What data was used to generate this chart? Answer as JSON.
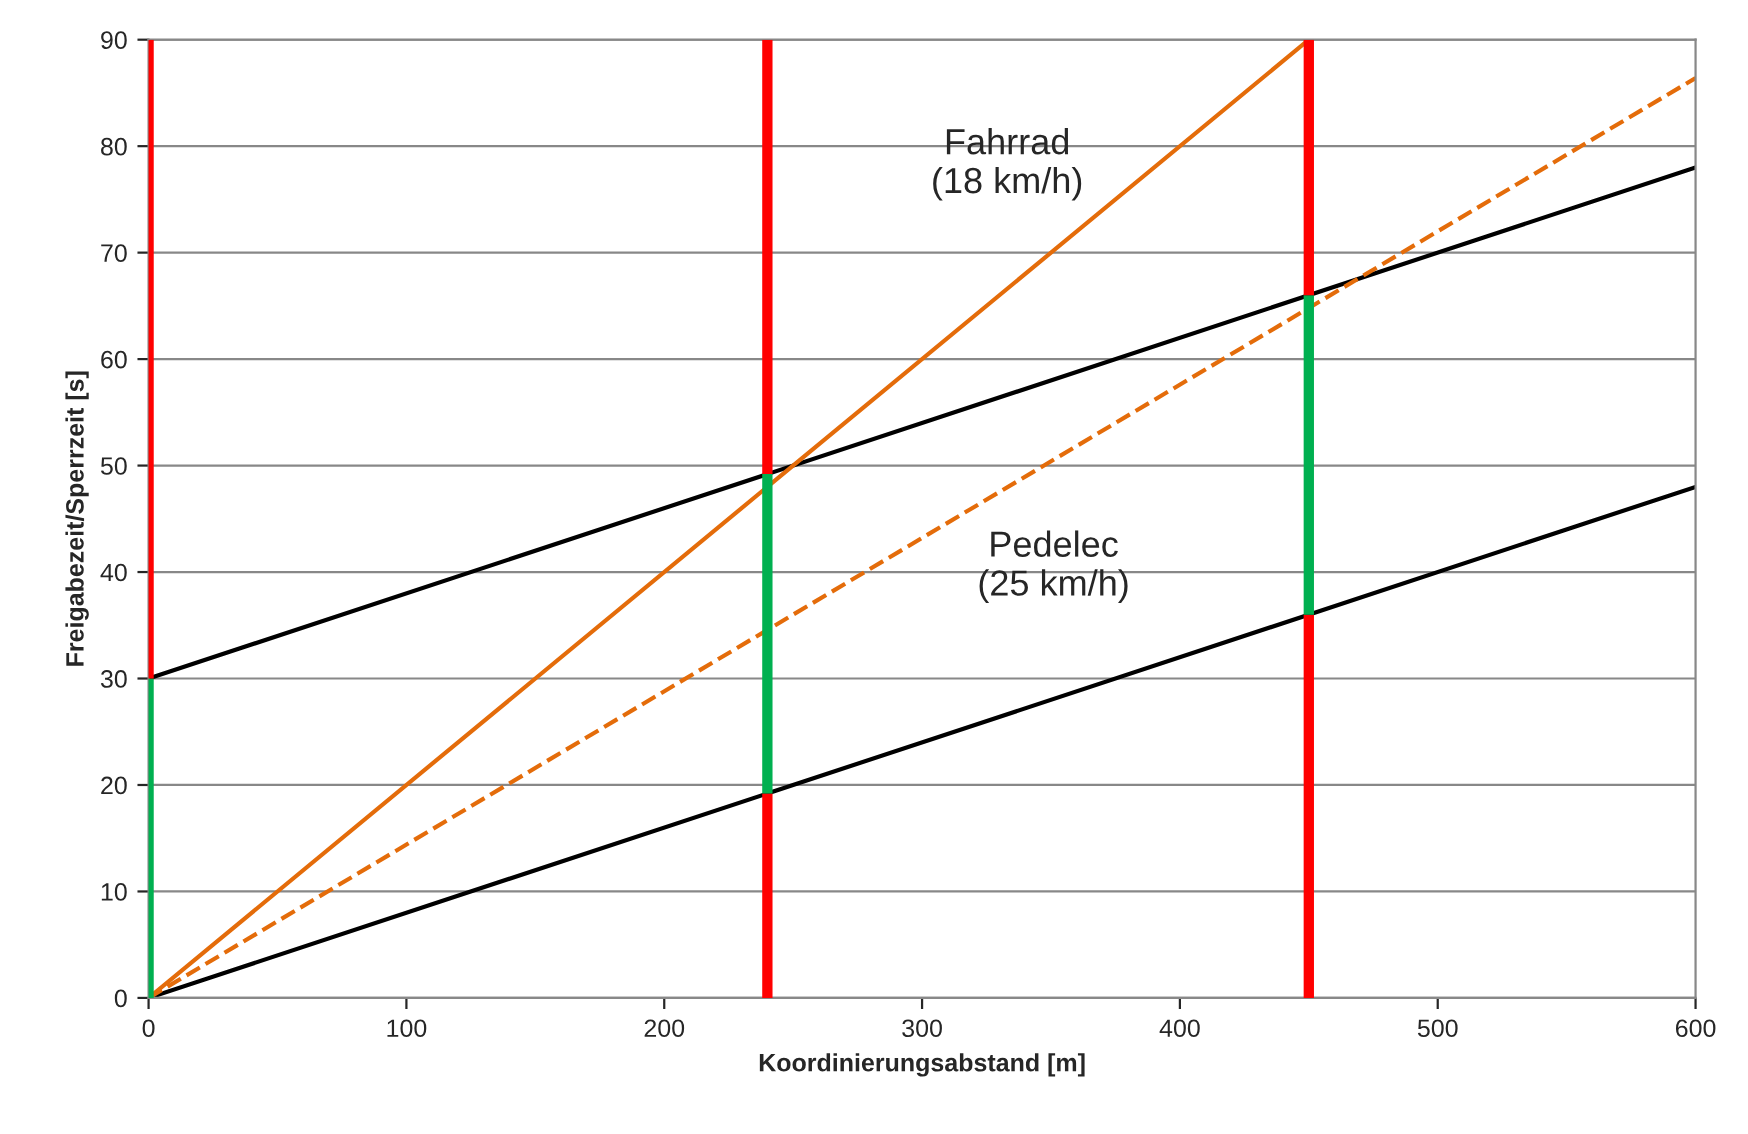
{
  "chart_data": {
    "type": "line",
    "xlabel": "Koordinierungsabstand [m]",
    "ylabel": "Freigabezeit/Sperrzeit [s]",
    "xlim": [
      0,
      600
    ],
    "ylim": [
      0,
      90
    ],
    "xticks": [
      0,
      100,
      200,
      300,
      400,
      500,
      600
    ],
    "yticks": [
      0,
      10,
      20,
      30,
      40,
      50,
      60,
      70,
      80,
      90
    ],
    "grid": "y",
    "legend": false,
    "stacked": true,
    "series": [
      {
        "color": "#000000",
        "x": [
          0,
          600
        ],
        "values": [
          30,
          78
        ],
        "line_style": "solid"
      },
      {
        "color": "#000000",
        "x": [
          0,
          600
        ],
        "values": [
          0,
          48
        ],
        "line_style": "solid"
      },
      {
        "color": "#e46c0a",
        "x": [
          0,
          450
        ],
        "values": [
          0,
          90
        ],
        "line_style": "solid"
      },
      {
        "color": "#e46c0a",
        "x": [
          0,
          600
        ],
        "values": [
          0,
          86.4
        ],
        "line_style": "dashed"
      },
      {
        "type": "bar",
        "color": "#ff0000",
        "x": [
          0,
          240,
          450
        ],
        "values": [
          0,
          19.2,
          36
        ]
      },
      {
        "type": "bar",
        "color": "#00b050",
        "x": [
          0,
          240,
          450
        ],
        "values": [
          30,
          30,
          30
        ]
      },
      {
        "type": "bar",
        "color": "#ff0000",
        "x": [
          0,
          240,
          450
        ],
        "values": [
          60,
          40.8,
          24
        ]
      }
    ],
    "annotations": [
      "Fahrrad\n(18 km/h)",
      "Pedelec\n(25 km/h)"
    ]
  }
}
